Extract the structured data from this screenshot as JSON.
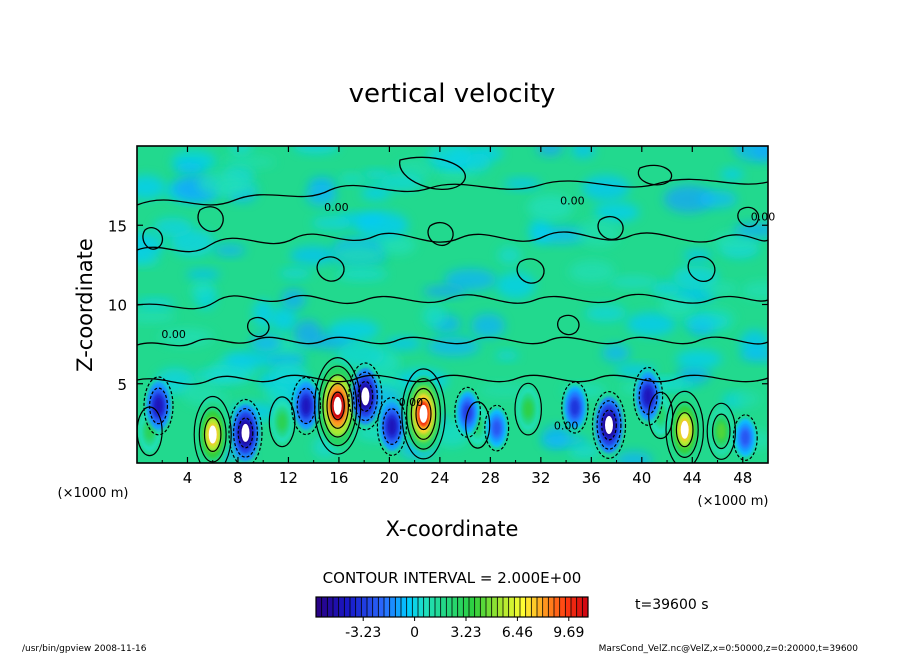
{
  "chart_data": {
    "type": "heatmap",
    "title": "vertical velocity",
    "xlabel": "X-coordinate",
    "ylabel": "Z-coordinate",
    "x_unit_left": "(×1000 m)",
    "x_unit_right": "(×1000 m)",
    "xlim": [
      0,
      50
    ],
    "ylim": [
      0,
      20
    ],
    "x_ticks": [
      4,
      8,
      12,
      16,
      20,
      24,
      28,
      32,
      36,
      40,
      44,
      48
    ],
    "y_ticks": [
      5,
      10,
      15
    ],
    "contour_interval_text": "CONTOUR INTERVAL = 2.000E+00",
    "contour_labels": [
      {
        "text": "0.00",
        "x": 34.5,
        "z": 16.3
      },
      {
        "text": "0.00",
        "x": 49.6,
        "z": 15.3
      },
      {
        "text": "0.00",
        "x": 15.8,
        "z": 15.9
      },
      {
        "text": "0.00",
        "x": 2.9,
        "z": 7.9
      },
      {
        "text": "0.00",
        "x": 34.0,
        "z": 2.1
      },
      {
        "text": "0.00",
        "x": 21.7,
        "z": 3.6
      }
    ],
    "colorbar": {
      "ticks": [
        "-3.23",
        "0",
        "3.23",
        "6.46",
        "9.69"
      ],
      "tick_values": [
        -3.23,
        0,
        3.23,
        6.46,
        9.69
      ],
      "range": [
        -6.2,
        10.9
      ]
    },
    "time_label": "t=39600 s",
    "updrafts": [
      {
        "x": 6.0,
        "z": 1.8,
        "w": 7.5
      },
      {
        "x": 15.9,
        "z": 3.6,
        "w": 10.9
      },
      {
        "x": 22.7,
        "z": 3.1,
        "w": 9.8
      },
      {
        "x": 43.4,
        "z": 2.1,
        "w": 7.6
      },
      {
        "x": 46.3,
        "z": 2.0,
        "w": 4.2
      },
      {
        "x": 31.0,
        "z": 3.4,
        "w": 3.5
      },
      {
        "x": 1.0,
        "z": 2.0,
        "w": 3.0
      },
      {
        "x": 11.5,
        "z": 2.6,
        "w": 3.2
      },
      {
        "x": 27.0,
        "z": 2.4,
        "w": 2.6
      },
      {
        "x": 41.5,
        "z": 3.0,
        "w": 2.6
      }
    ],
    "downdrafts": [
      {
        "x": 1.7,
        "z": 3.6,
        "w": -4.5
      },
      {
        "x": 8.6,
        "z": 1.9,
        "w": -6.0
      },
      {
        "x": 13.4,
        "z": 3.6,
        "w": -4.4
      },
      {
        "x": 18.1,
        "z": 4.2,
        "w": -6.0
      },
      {
        "x": 20.2,
        "z": 2.3,
        "w": -4.5
      },
      {
        "x": 26.2,
        "z": 3.2,
        "w": -3.2
      },
      {
        "x": 28.5,
        "z": 2.2,
        "w": -2.5
      },
      {
        "x": 34.7,
        "z": 3.5,
        "w": -3.4
      },
      {
        "x": 37.4,
        "z": 2.4,
        "w": -6.0
      },
      {
        "x": 40.5,
        "z": 4.2,
        "w": -4.5
      },
      {
        "x": 48.2,
        "z": 1.6,
        "w": -2.5
      }
    ]
  },
  "footer": {
    "left": "/usr/bin/gpview  2008-11-16",
    "right": "MarsCond_VelZ.nc@VelZ,x=0:50000,z=0:20000,t=39600"
  }
}
